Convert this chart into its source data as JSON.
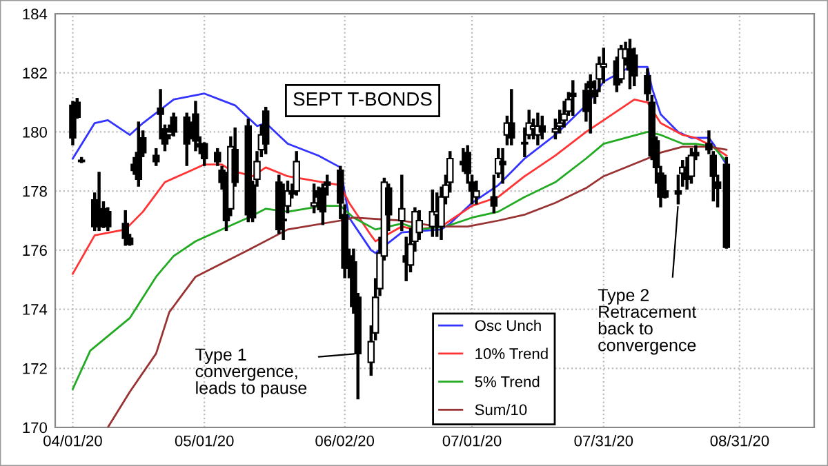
{
  "chart_data": {
    "type": "candlestick",
    "title": "SEPT T-BONDS",
    "x": [
      "2020-04-01",
      "2020-04-02",
      "2020-04-03",
      "2020-04-06",
      "2020-04-07",
      "2020-04-08",
      "2020-04-09",
      "2020-04-13",
      "2020-04-14",
      "2020-04-15",
      "2020-04-16",
      "2020-04-17",
      "2020-04-20",
      "2020-04-21",
      "2020-04-22",
      "2020-04-23",
      "2020-04-24",
      "2020-04-27",
      "2020-04-28",
      "2020-04-29",
      "2020-04-30",
      "2020-05-01",
      "2020-05-04",
      "2020-05-05",
      "2020-05-06",
      "2020-05-07",
      "2020-05-08",
      "2020-05-11",
      "2020-05-12",
      "2020-05-13",
      "2020-05-14",
      "2020-05-15",
      "2020-05-18",
      "2020-05-19",
      "2020-05-20",
      "2020-05-21",
      "2020-05-22",
      "2020-05-26",
      "2020-05-27",
      "2020-05-28",
      "2020-05-29",
      "2020-06-01",
      "2020-06-02",
      "2020-06-03",
      "2020-06-04",
      "2020-06-05",
      "2020-06-08",
      "2020-06-09",
      "2020-06-10",
      "2020-06-11",
      "2020-06-12",
      "2020-06-15",
      "2020-06-16",
      "2020-06-17",
      "2020-06-18",
      "2020-06-19",
      "2020-06-22",
      "2020-06-23",
      "2020-06-24",
      "2020-06-25",
      "2020-06-26",
      "2020-06-29",
      "2020-06-30",
      "2020-07-01",
      "2020-07-02",
      "2020-07-06",
      "2020-07-07",
      "2020-07-08",
      "2020-07-09",
      "2020-07-10",
      "2020-07-13",
      "2020-07-14",
      "2020-07-15",
      "2020-07-16",
      "2020-07-17",
      "2020-07-20",
      "2020-07-21",
      "2020-07-22",
      "2020-07-23",
      "2020-07-24",
      "2020-07-27",
      "2020-07-28",
      "2020-07-29",
      "2020-07-30",
      "2020-07-31",
      "2020-08-03",
      "2020-08-04",
      "2020-08-05",
      "2020-08-06",
      "2020-08-07",
      "2020-08-10",
      "2020-08-11",
      "2020-08-12",
      "2020-08-13",
      "2020-08-14",
      "2020-08-17",
      "2020-08-18",
      "2020-08-19",
      "2020-08-20",
      "2020-08-21",
      "2020-08-24",
      "2020-08-25",
      "2020-08-26",
      "2020-08-28"
    ],
    "ohlc": [
      [
        180.9,
        181.0,
        179.6,
        179.8
      ],
      [
        181.0,
        181.1,
        180.5,
        180.5
      ],
      [
        179.0,
        179.1,
        179.0,
        179.0
      ],
      [
        177.7,
        177.9,
        176.7,
        176.8
      ],
      [
        177.2,
        178.6,
        176.7,
        176.8
      ],
      [
        177.4,
        177.6,
        176.8,
        177.1
      ],
      [
        177.3,
        177.4,
        176.7,
        176.8
      ],
      [
        176.9,
        177.3,
        176.2,
        176.4
      ],
      [
        176.4,
        176.5,
        176.2,
        176.2
      ],
      [
        178.9,
        179.1,
        178.6,
        178.7
      ],
      [
        179.3,
        180.3,
        178.2,
        178.4
      ],
      [
        179.8,
        180.0,
        179.2,
        179.3
      ],
      [
        179.2,
        179.4,
        178.9,
        179.0
      ],
      [
        180.8,
        181.4,
        179.8,
        180.6
      ],
      [
        180.1,
        180.2,
        179.4,
        179.6
      ],
      [
        179.9,
        180.2,
        179.8,
        180.0
      ],
      [
        180.5,
        180.6,
        179.9,
        180.0
      ],
      [
        180.5,
        180.6,
        178.9,
        179.6
      ],
      [
        180.2,
        180.3,
        179.8,
        180.0
      ],
      [
        180.6,
        181.0,
        179.4,
        179.7
      ],
      [
        179.6,
        179.8,
        179.3,
        179.5
      ],
      [
        179.6,
        179.6,
        178.9,
        179.1
      ],
      [
        179.3,
        179.4,
        178.9,
        179.0
      ],
      [
        178.7,
        178.8,
        178.1,
        178.3
      ],
      [
        178.4,
        178.6,
        176.7,
        177.0
      ],
      [
        177.4,
        179.8,
        177.2,
        179.5
      ],
      [
        179.4,
        180.1,
        178.2,
        178.3
      ],
      [
        180.2,
        180.4,
        177.0,
        177.2
      ],
      [
        178.2,
        178.3,
        177.0,
        177.1
      ],
      [
        178.4,
        179.3,
        178.2,
        179.0
      ],
      [
        179.4,
        180.2,
        179.2,
        179.9
      ],
      [
        180.7,
        180.8,
        179.3,
        179.6
      ],
      [
        178.3,
        178.5,
        176.6,
        176.7
      ],
      [
        177.0,
        178.2,
        176.4,
        177.0
      ],
      [
        177.5,
        178.3,
        177.3,
        178.0
      ],
      [
        178.0,
        178.2,
        177.8,
        177.9
      ],
      [
        178.0,
        179.3,
        177.9,
        179.0
      ],
      [
        177.5,
        178.2,
        177.3,
        177.6
      ],
      [
        178.0,
        178.1,
        177.4,
        177.8
      ],
      [
        178.1,
        178.2,
        176.9,
        177.3
      ],
      [
        178.3,
        178.5,
        177.9,
        178.2
      ],
      [
        178.7,
        178.8,
        177.1,
        177.6
      ],
      [
        177.2,
        177.5,
        175.1,
        175.4
      ],
      [
        175.8,
        176.0,
        175.1,
        175.4
      ],
      [
        175.6,
        176.0,
        173.9,
        174.1
      ],
      [
        174.4,
        174.5,
        171.0,
        172.5
      ],
      [
        172.2,
        173.4,
        171.8,
        172.9
      ],
      [
        173.2,
        175.0,
        173.0,
        174.4
      ],
      [
        174.7,
        176.4,
        174.5,
        175.9
      ],
      [
        175.8,
        178.4,
        175.7,
        178.3
      ],
      [
        178.1,
        178.2,
        176.7,
        177.2
      ],
      [
        177.0,
        178.5,
        176.7,
        177.4
      ],
      [
        175.8,
        176.4,
        175.0,
        175.6
      ],
      [
        175.5,
        176.7,
        175.3,
        176.2
      ],
      [
        176.3,
        177.4,
        176.0,
        177.3
      ],
      [
        176.6,
        177.3,
        176.4,
        177.0
      ],
      [
        176.8,
        178.0,
        176.5,
        177.3
      ],
      [
        177.2,
        177.9,
        176.5,
        177.3
      ],
      [
        176.8,
        178.1,
        176.4,
        177.8
      ],
      [
        177.8,
        178.5,
        177.6,
        178.2
      ],
      [
        178.3,
        179.3,
        178.0,
        179.1
      ],
      [
        179.0,
        179.4,
        178.7,
        178.9
      ],
      [
        179.3,
        179.5,
        178.3,
        178.6
      ],
      [
        178.3,
        178.5,
        177.6,
        178.0
      ],
      [
        177.8,
        178.3,
        177.6,
        178.0
      ],
      [
        177.8,
        178.5,
        177.3,
        177.5
      ],
      [
        178.6,
        179.4,
        178.5,
        179.1
      ],
      [
        179.0,
        179.4,
        178.3,
        178.9
      ],
      [
        179.9,
        180.5,
        179.6,
        180.3
      ],
      [
        180.3,
        181.4,
        179.6,
        179.8
      ],
      [
        179.6,
        180.1,
        179.2,
        179.6
      ],
      [
        179.9,
        180.7,
        179.8,
        180.3
      ],
      [
        180.1,
        180.4,
        179.8,
        180.2
      ],
      [
        179.9,
        180.6,
        179.6,
        180.2
      ],
      [
        180.2,
        180.5,
        179.8,
        180.0
      ],
      [
        180.0,
        180.4,
        179.8,
        180.1
      ],
      [
        180.2,
        180.7,
        180.0,
        180.3
      ],
      [
        180.4,
        181.0,
        180.2,
        180.6
      ],
      [
        180.7,
        181.3,
        180.6,
        181.1
      ],
      [
        181.3,
        181.7,
        180.6,
        181.2
      ],
      [
        181.4,
        181.6,
        180.4,
        180.7
      ],
      [
        181.7,
        181.9,
        180.0,
        181.5
      ],
      [
        181.4,
        181.7,
        181.0,
        181.2
      ],
      [
        181.8,
        182.5,
        181.4,
        182.3
      ],
      [
        182.2,
        182.8,
        181.7,
        182.3
      ],
      [
        182.4,
        182.5,
        181.4,
        181.6
      ],
      [
        181.8,
        182.9,
        181.7,
        182.8
      ],
      [
        182.5,
        183.0,
        182.3,
        182.8
      ],
      [
        182.8,
        183.1,
        181.5,
        182.1
      ],
      [
        182.6,
        182.8,
        181.6,
        181.9
      ],
      [
        181.9,
        182.1,
        181.1,
        181.3
      ],
      [
        181.0,
        181.2,
        179.1,
        179.2
      ],
      [
        179.7,
        179.8,
        178.3,
        178.8
      ],
      [
        178.6,
        178.8,
        177.5,
        177.8
      ],
      [
        178.0,
        178.5,
        177.8,
        177.8
      ],
      [
        178.0,
        178.5,
        177.6,
        177.9
      ],
      [
        178.6,
        179.0,
        178.2,
        178.8
      ],
      [
        178.8,
        179.1,
        178.1,
        178.4
      ],
      [
        178.5,
        179.4,
        178.3,
        179.2
      ],
      [
        179.3,
        179.5,
        179.1,
        179.2
      ],
      [
        179.6,
        180.0,
        179.3,
        179.4
      ],
      [
        179.2,
        179.3,
        177.7,
        178.5
      ],
      [
        178.3,
        178.5,
        177.5,
        178.1
      ],
      [
        178.9,
        179.1,
        176.1,
        176.1
      ]
    ],
    "series": [
      {
        "type": "line",
        "name": "Osc Unch",
        "color": "#3333ff",
        "x": [
          "2020-04-01",
          "2020-04-06",
          "2020-04-09",
          "2020-04-14",
          "2020-04-17",
          "2020-04-24",
          "2020-05-01",
          "2020-05-08",
          "2020-05-13",
          "2020-05-15",
          "2020-05-20",
          "2020-05-27",
          "2020-06-01",
          "2020-06-03",
          "2020-06-08",
          "2020-06-09",
          "2020-06-15",
          "2020-06-24",
          "2020-06-26",
          "2020-07-01",
          "2020-07-07",
          "2020-07-13",
          "2020-07-20",
          "2020-07-27",
          "2020-07-31",
          "2020-08-06",
          "2020-08-10",
          "2020-08-11",
          "2020-08-13",
          "2020-08-17",
          "2020-08-20",
          "2020-08-24",
          "2020-08-25",
          "2020-08-28"
        ],
        "values": [
          179.1,
          180.3,
          180.4,
          179.9,
          180.3,
          181.1,
          181.3,
          180.9,
          180.2,
          180.3,
          179.6,
          179.2,
          178.8,
          177.1,
          176.0,
          175.9,
          176.6,
          176.7,
          176.9,
          177.6,
          178.2,
          179.1,
          179.9,
          180.9,
          181.7,
          182.2,
          182.2,
          181.5,
          180.6,
          180.0,
          179.8,
          179.8,
          179.6,
          178.9
        ]
      },
      {
        "type": "line",
        "name": "10% Trend",
        "color": "#ff3333",
        "x": [
          "2020-04-01",
          "2020-04-06",
          "2020-04-13",
          "2020-04-17",
          "2020-04-22",
          "2020-04-28",
          "2020-05-01",
          "2020-05-05",
          "2020-05-07",
          "2020-05-12",
          "2020-05-15",
          "2020-05-20",
          "2020-05-28",
          "2020-06-01",
          "2020-06-03",
          "2020-06-08",
          "2020-06-09",
          "2020-06-15",
          "2020-06-18",
          "2020-06-24",
          "2020-06-26",
          "2020-07-01",
          "2020-07-07",
          "2020-07-13",
          "2020-07-20",
          "2020-07-27",
          "2020-07-31",
          "2020-08-07",
          "2020-08-10",
          "2020-08-13",
          "2020-08-18",
          "2020-08-21",
          "2020-08-25",
          "2020-08-28"
        ],
        "values": [
          175.2,
          176.5,
          176.7,
          177.3,
          178.3,
          178.7,
          178.9,
          178.9,
          178.7,
          178.5,
          178.8,
          178.5,
          178.3,
          178.2,
          177.6,
          176.5,
          176.3,
          176.8,
          176.7,
          176.8,
          177.0,
          177.5,
          177.8,
          178.5,
          179.2,
          180.0,
          180.4,
          181.1,
          181.0,
          180.3,
          179.9,
          179.8,
          179.5,
          179.2
        ]
      },
      {
        "type": "line",
        "name": "5% Trend",
        "color": "#22aa22",
        "x": [
          "2020-04-01",
          "2020-04-05",
          "2020-04-14",
          "2020-04-20",
          "2020-04-24",
          "2020-04-29",
          "2020-05-05",
          "2020-05-11",
          "2020-05-15",
          "2020-05-20",
          "2020-05-28",
          "2020-06-01",
          "2020-06-04",
          "2020-06-09",
          "2020-06-15",
          "2020-06-19",
          "2020-06-25",
          "2020-07-01",
          "2020-07-07",
          "2020-07-13",
          "2020-07-20",
          "2020-07-27",
          "2020-07-31",
          "2020-08-10",
          "2020-08-13",
          "2020-08-18",
          "2020-08-21",
          "2020-08-25",
          "2020-08-28"
        ],
        "values": [
          171.3,
          172.6,
          173.7,
          175.1,
          175.8,
          176.3,
          176.7,
          177.1,
          177.4,
          177.3,
          177.5,
          177.5,
          177.1,
          176.7,
          176.9,
          176.7,
          176.8,
          177.1,
          177.3,
          177.8,
          178.3,
          179.1,
          179.6,
          180.0,
          179.9,
          179.6,
          179.6,
          179.5,
          179.0
        ]
      },
      {
        "type": "line",
        "name": "Sum/10",
        "color": "#993333",
        "x": [
          "2020-04-09",
          "2020-04-14",
          "2020-04-20",
          "2020-04-23",
          "2020-04-29",
          "2020-05-11",
          "2020-05-20",
          "2020-06-01",
          "2020-06-04",
          "2020-06-15",
          "2020-06-23",
          "2020-06-30",
          "2020-07-07",
          "2020-07-13",
          "2020-07-20",
          "2020-07-27",
          "2020-07-31",
          "2020-08-10",
          "2020-08-13",
          "2020-08-18",
          "2020-08-24",
          "2020-08-28"
        ],
        "values": [
          170.0,
          171.2,
          172.5,
          173.9,
          175.1,
          176.0,
          176.7,
          177.0,
          177.1,
          177.0,
          176.8,
          176.8,
          177.0,
          177.2,
          177.6,
          178.1,
          178.5,
          179.1,
          179.3,
          179.5,
          179.5,
          179.4
        ]
      }
    ],
    "xlim": [
      "2020-03-28",
      "2020-09-17"
    ],
    "xticks": [
      {
        "value": "2020-04-01",
        "label": "04/01/20"
      },
      {
        "value": "2020-05-01",
        "label": "05/01/20"
      },
      {
        "value": "2020-06-02",
        "label": "06/02/20"
      },
      {
        "value": "2020-07-01",
        "label": "07/01/20"
      },
      {
        "value": "2020-07-31",
        "label": "07/31/20"
      },
      {
        "value": "2020-08-31",
        "label": "08/31/20"
      }
    ],
    "ylim": [
      170,
      184
    ],
    "yticks": [
      170,
      172,
      174,
      176,
      178,
      180,
      182,
      184
    ],
    "grid": true,
    "legend": "bottom",
    "annotations": [
      {
        "text": "Type 1\nconvergence,\nleads to pause",
        "x": "2020-06-05",
        "y": 172.5
      },
      {
        "text": "Type 2\nRetracement\nback to\nconvergence",
        "x": "2020-08-17",
        "y": 177.6
      }
    ]
  }
}
